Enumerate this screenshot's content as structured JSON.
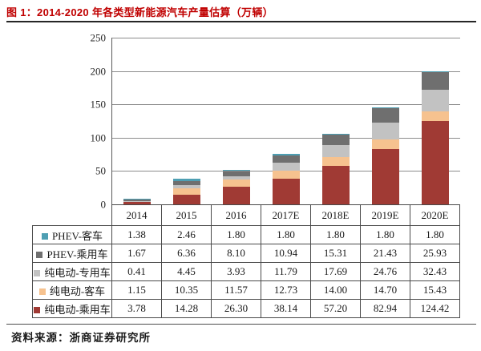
{
  "title": "图 1：2014-2020 年各类型新能源汽车产量估算（万辆）",
  "source": "资料来源：浙商证券研究所",
  "colors": {
    "title_red": "#C00000",
    "axis_line": "#595959",
    "gridline": "#8C8C8C",
    "table_border": "#4A4A4A"
  },
  "chart_data": {
    "type": "bar",
    "stacked": true,
    "title": "2014-2020 年各类型新能源汽车产量估算（万辆）",
    "xlabel": "",
    "ylabel": "",
    "categories": [
      "2014",
      "2015",
      "2016",
      "2017E",
      "2018E",
      "2019E",
      "2020E"
    ],
    "series": [
      {
        "name": "PHEV-客车",
        "color": "#4E9FB3",
        "values": [
          1.38,
          2.46,
          1.8,
          1.8,
          1.8,
          1.8,
          1.8
        ]
      },
      {
        "name": "PHEV-乘用车",
        "color": "#6F6F6F",
        "values": [
          1.67,
          6.36,
          8.1,
          10.94,
          15.31,
          21.43,
          25.93
        ]
      },
      {
        "name": "纯电动-专用车",
        "color": "#C2C2C2",
        "values": [
          0.41,
          4.45,
          3.93,
          11.79,
          17.69,
          24.76,
          32.43
        ]
      },
      {
        "name": "纯电动-客车",
        "color": "#F6C28F",
        "values": [
          1.15,
          10.35,
          11.57,
          12.73,
          14.0,
          14.7,
          15.43
        ]
      },
      {
        "name": "纯电动-乘用车",
        "color": "#A03A34",
        "values": [
          3.78,
          14.28,
          26.3,
          38.14,
          57.2,
          82.94,
          124.42
        ]
      }
    ],
    "stack_order": "series listed top-of-stack first; last series sits at bottom of each bar",
    "ylim": [
      0,
      250
    ],
    "yticks": [
      0,
      50,
      100,
      150,
      200,
      250
    ],
    "grid": true,
    "legend_position": "left column of data table below chart"
  },
  "table": {
    "columns": [
      "2014",
      "2015",
      "2016",
      "2017E",
      "2018E",
      "2019E",
      "2020E"
    ],
    "rows": [
      {
        "label": "PHEV-客车",
        "color": "#4E9FB3",
        "cells": [
          "1.38",
          "2.46",
          "1.80",
          "1.80",
          "1.80",
          "1.80",
          "1.80"
        ]
      },
      {
        "label": "PHEV-乘用车",
        "color": "#6F6F6F",
        "cells": [
          "1.67",
          "6.36",
          "8.10",
          "10.94",
          "15.31",
          "21.43",
          "25.93"
        ]
      },
      {
        "label": "纯电动-专用车",
        "color": "#C2C2C2",
        "cells": [
          "0.41",
          "4.45",
          "3.93",
          "11.79",
          "17.69",
          "24.76",
          "32.43"
        ]
      },
      {
        "label": "纯电动-客车",
        "color": "#F6C28F",
        "cells": [
          "1.15",
          "10.35",
          "11.57",
          "12.73",
          "14.00",
          "14.70",
          "15.43"
        ]
      },
      {
        "label": "纯电动-乘用车",
        "color": "#A03A34",
        "cells": [
          "3.78",
          "14.28",
          "26.30",
          "38.14",
          "57.20",
          "82.94",
          "124.42"
        ]
      }
    ]
  }
}
